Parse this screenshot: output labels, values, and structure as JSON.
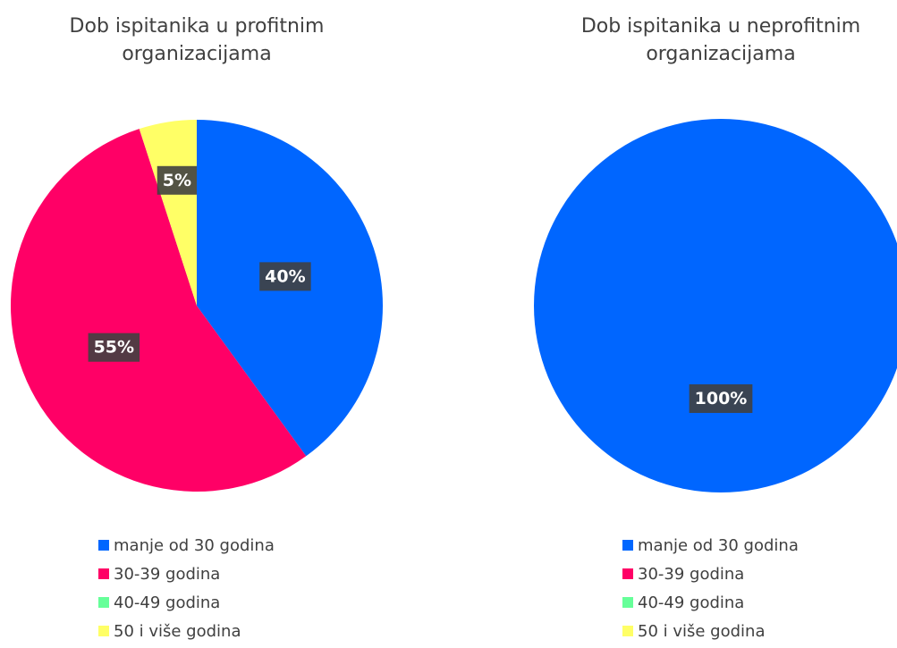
{
  "chart_data": [
    {
      "type": "pie",
      "title": "Dob ispitanika u profitnim organizacijama",
      "categories": [
        "manje od 30 godina",
        "30-39 godina",
        "40-49 godina",
        "50 i više godina"
      ],
      "values": [
        40,
        55,
        0,
        5
      ],
      "value_labels": [
        "40%",
        "55%",
        null,
        "5%"
      ],
      "colors": [
        "#0066ff",
        "#ff0066",
        "#66ff99",
        "#ffff66"
      ],
      "legend": "bottom"
    },
    {
      "type": "pie",
      "title": "Dob ispitanika u neprofitnim organizacijama",
      "categories": [
        "manje od 30 godina",
        "30-39 godina",
        "40-49 godina",
        "50 i više godina"
      ],
      "values": [
        100,
        0,
        0,
        0
      ],
      "value_labels": [
        "100%",
        null,
        null,
        null
      ],
      "colors": [
        "#0066ff",
        "#ff0066",
        "#66ff99",
        "#ffff66"
      ],
      "legend": "bottom"
    }
  ]
}
